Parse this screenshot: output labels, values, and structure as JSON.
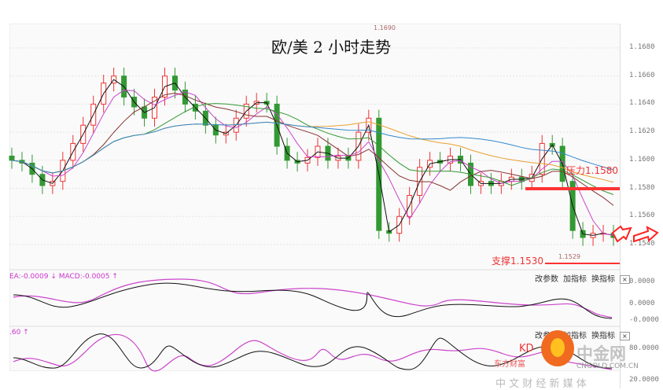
{
  "title": "欧/美 2 小时走势",
  "annotations": {
    "resistance": "压力1.1580",
    "support": "支撑1.1530",
    "high": "1.1690",
    "low": "1.1529"
  },
  "macd_panel": {
    "label": "EA:-0.0009 ↓ MACD:-0.0005 ↑",
    "ticks": [
      "0.0000",
      "0.0000",
      "-0.0000"
    ]
  },
  "kdj_panel": {
    "label": ".60 ↑",
    "ticks": [
      "80.0000",
      "20.0000"
    ]
  },
  "panel_buttons": {
    "change_params": "改参数",
    "add_indicator": "加指标",
    "switch_indicator": "换指标",
    "close": "×"
  },
  "watermark": {
    "brand": "中金网",
    "domain": "CNGOLD.COM.CN",
    "slogan": "中 文 财 经 新 媒 体",
    "partial": "KD",
    "partial2": "东方财富"
  },
  "colors": {
    "up": "#e33",
    "down": "#393",
    "resistance": "#f33",
    "ma_black": "#111",
    "ma_pink": "#c4c",
    "ma_brown": "#833",
    "ma_green": "#393",
    "ma_orange": "#e9a030",
    "ma_blue": "#38c"
  },
  "chart_data": {
    "type": "candlestick",
    "title": "欧/美 2 小时走势",
    "ylim": [
      1.152,
      1.17
    ],
    "yticks": [
      "1.1680",
      "1.1660",
      "1.1640",
      "1.1620",
      "1.1600",
      "1.1580",
      "1.1560",
      "1.1540"
    ],
    "closes": [
      1.16,
      1.1598,
      1.159,
      1.1582,
      1.1585,
      1.16,
      1.1612,
      1.1625,
      1.164,
      1.1655,
      1.166,
      1.1645,
      1.1638,
      1.163,
      1.1645,
      1.166,
      1.165,
      1.164,
      1.1635,
      1.1625,
      1.1618,
      1.162,
      1.163,
      1.164,
      1.1642,
      1.164,
      1.161,
      1.16,
      1.1598,
      1.1602,
      1.161,
      1.16,
      1.1603,
      1.16,
      1.162,
      1.163,
      1.155,
      1.1548,
      1.156,
      1.1575,
      1.1595,
      1.16,
      1.1598,
      1.1603,
      1.1598,
      1.1582,
      1.1585,
      1.1582,
      1.1585,
      1.1588,
      1.1585,
      1.159,
      1.1612,
      1.161,
      1.1585,
      1.155,
      1.1545,
      1.1548,
      1.1548,
      1.1545
    ],
    "resistance": 1.158,
    "support": 1.153,
    "high": 1.169,
    "low": 1.1529
  }
}
